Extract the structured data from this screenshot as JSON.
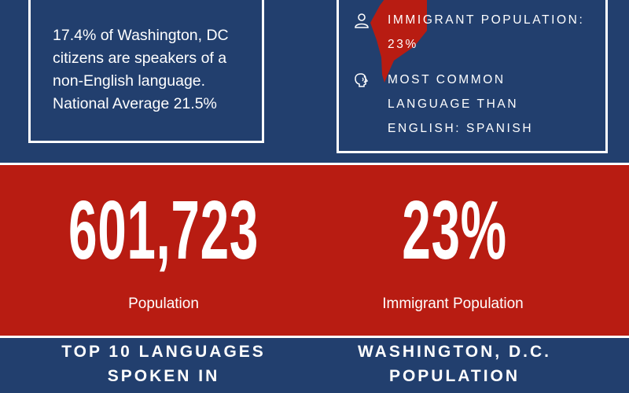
{
  "colors": {
    "navy": "#223f6e",
    "red": "#b81c12",
    "white": "#ffffff"
  },
  "stat_box": {
    "lines": [
      "17.4% of Washington, DC",
      "citizens are speakers of a",
      "non-English language.",
      "National Average 21.5%"
    ]
  },
  "info_box": {
    "immigrant": {
      "icon": "person-icon",
      "line1": "IMMIGRANT POPULATION:",
      "line2": "23%"
    },
    "language": {
      "icon": "speaking-head-icon",
      "line1": "MOST COMMON",
      "line2": "LANGUAGE THAN",
      "line3": "ENGLISH: SPANISH"
    }
  },
  "stats": {
    "population": {
      "value": "601,723",
      "label": "Population"
    },
    "immigrant": {
      "value": "23%",
      "label": "Immigrant Population"
    }
  },
  "headings": {
    "left": {
      "line1": "TOP 10 LANGUAGES",
      "line2": "SPOKEN IN"
    },
    "right": {
      "line1": "WASHINGTON, D.C.",
      "line2": "POPULATION"
    }
  }
}
